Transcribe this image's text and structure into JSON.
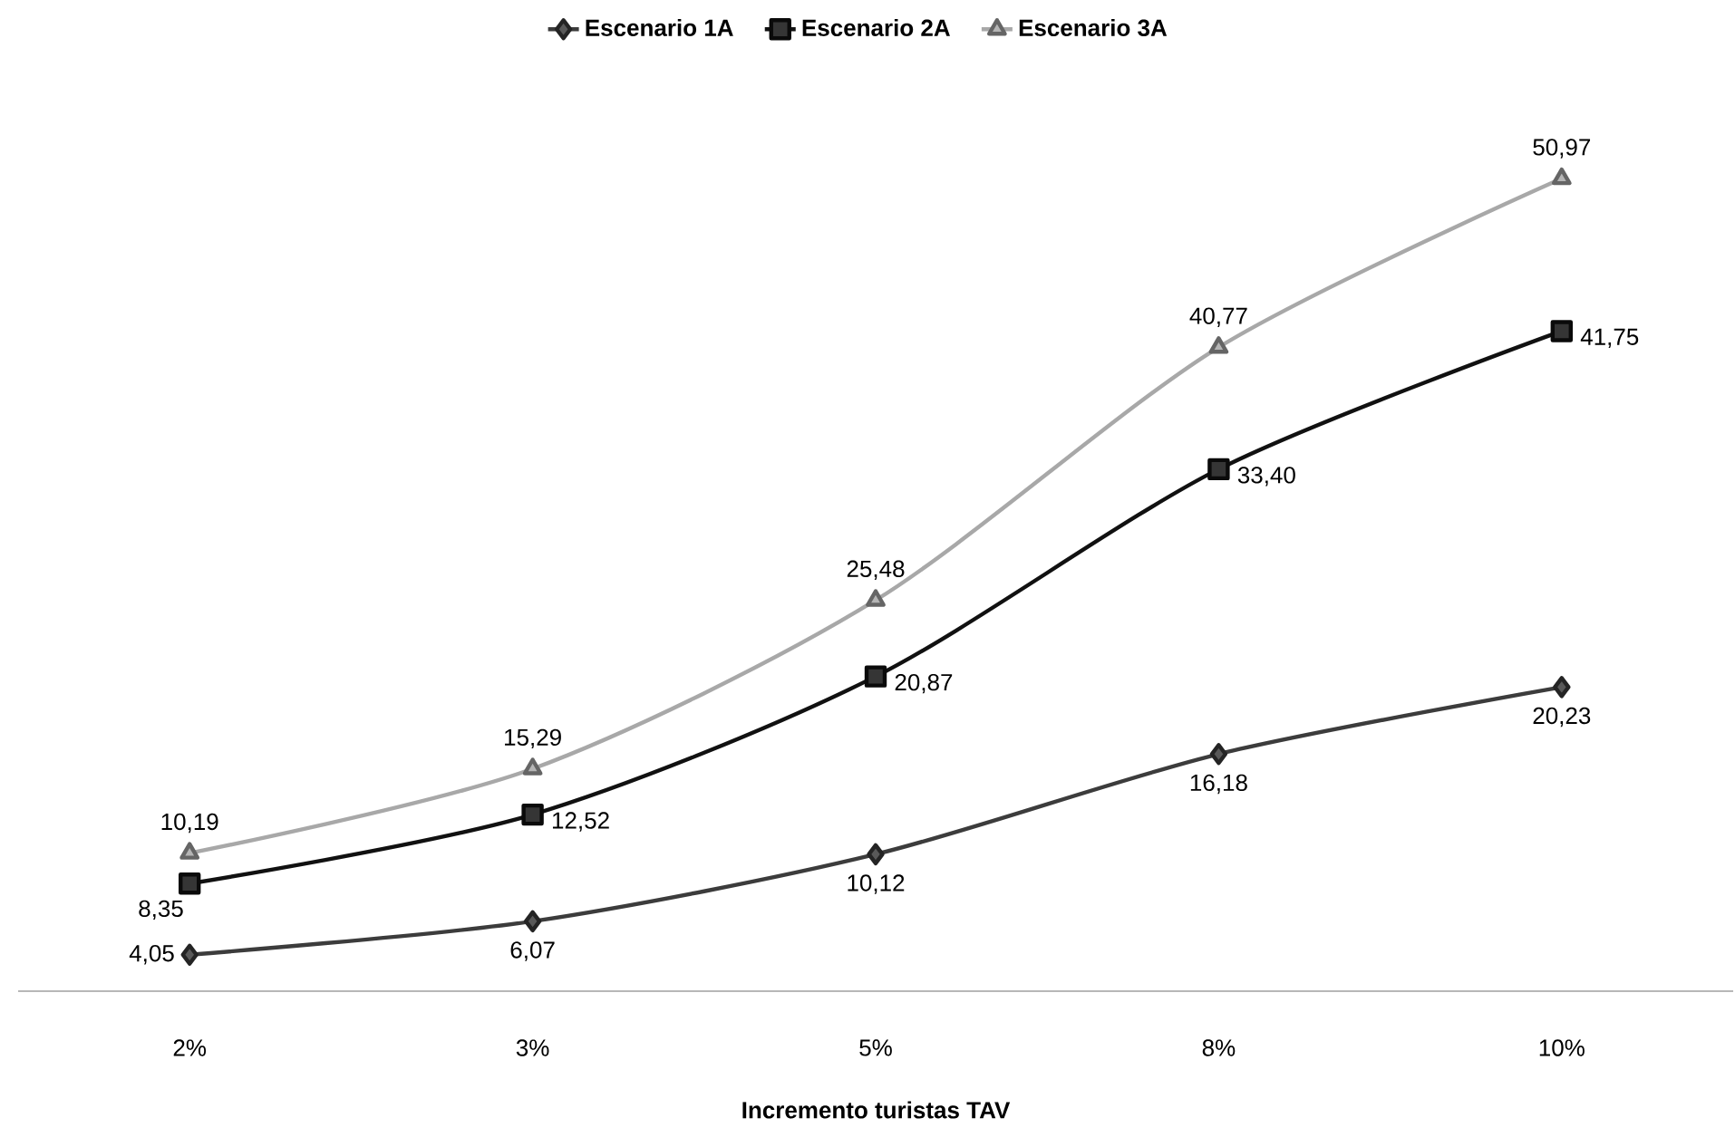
{
  "chart_data": {
    "type": "line",
    "xlabel": "Incremento turistas TAV",
    "categories": [
      "2%",
      "3%",
      "5%",
      "8%",
      "10%"
    ],
    "series": [
      {
        "name": "Escenario 1A",
        "color": "#3c3c3c",
        "marker": "diamond",
        "values": [
          4.05,
          6.07,
          10.12,
          16.18,
          20.23
        ],
        "value_labels": [
          "4,05",
          "6,07",
          "10,12",
          "16,18",
          "20,23"
        ]
      },
      {
        "name": "Escenario 2A",
        "color": "#111111",
        "marker": "square",
        "values": [
          8.35,
          12.52,
          20.87,
          33.4,
          41.75
        ],
        "value_labels": [
          "8,35",
          "12,52",
          "20,87",
          "33,40",
          "41,75"
        ]
      },
      {
        "name": "Escenario 3A",
        "color": "#a8a8a8",
        "marker": "triangle",
        "values": [
          10.19,
          15.29,
          25.48,
          40.77,
          50.97
        ],
        "value_labels": [
          "10,19",
          "15,29",
          "25,48",
          "40,77",
          "50,97"
        ]
      }
    ],
    "legend": "top",
    "line_style": "solid"
  }
}
